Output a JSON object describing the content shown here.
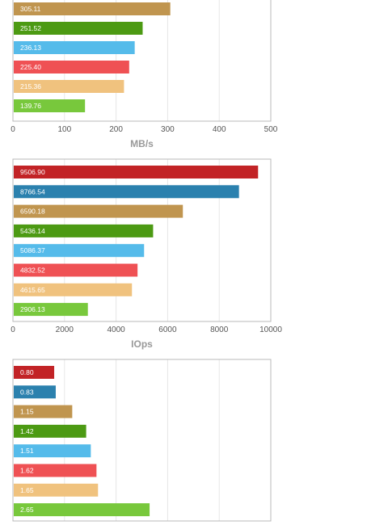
{
  "chart_data": [
    {
      "type": "bar",
      "orientation": "horizontal",
      "xlabel": "MB/s",
      "xlim": [
        0,
        500
      ],
      "xticks": [
        "0",
        "100",
        "200",
        "300",
        "400",
        "500"
      ],
      "bars": [
        {
          "value": 305.11,
          "label": "305.11",
          "color": "#c0954f"
        },
        {
          "value": 251.52,
          "label": "251.52",
          "color": "#4c9a13"
        },
        {
          "value": 236.13,
          "label": "236.13",
          "color": "#55bbea"
        },
        {
          "value": 225.4,
          "label": "225.40",
          "color": "#ef5154"
        },
        {
          "value": 215.36,
          "label": "215.36",
          "color": "#f0c27e"
        },
        {
          "value": 139.76,
          "label": "139.76",
          "color": "#78c83c"
        }
      ]
    },
    {
      "type": "bar",
      "orientation": "horizontal",
      "xlabel": "IOps",
      "xlim": [
        0,
        10000
      ],
      "xticks": [
        "0",
        "2000",
        "4000",
        "6000",
        "8000",
        "10000"
      ],
      "bars": [
        {
          "value": 9506.9,
          "label": "9506.90",
          "color": "#c22326"
        },
        {
          "value": 8766.54,
          "label": "8766.54",
          "color": "#2b81ae"
        },
        {
          "value": 6590.18,
          "label": "6590.18",
          "color": "#c0954f"
        },
        {
          "value": 5436.14,
          "label": "5436.14",
          "color": "#4c9a13"
        },
        {
          "value": 5086.37,
          "label": "5086.37",
          "color": "#55bbea"
        },
        {
          "value": 4832.52,
          "label": "4832.52",
          "color": "#ef5154"
        },
        {
          "value": 4615.65,
          "label": "4615.65",
          "color": "#f0c27e"
        },
        {
          "value": 2906.13,
          "label": "2906.13",
          "color": "#78c83c"
        }
      ]
    },
    {
      "type": "bar",
      "orientation": "horizontal",
      "xlabel": "",
      "xlim": [
        0,
        5
      ],
      "xticks": [],
      "bars": [
        {
          "value": 0.8,
          "label": "0.80",
          "color": "#c22326"
        },
        {
          "value": 0.83,
          "label": "0.83",
          "color": "#2b81ae"
        },
        {
          "value": 1.15,
          "label": "1.15",
          "color": "#c0954f"
        },
        {
          "value": 1.42,
          "label": "1.42",
          "color": "#4c9a13"
        },
        {
          "value": 1.51,
          "label": "1.51",
          "color": "#55bbea"
        },
        {
          "value": 1.62,
          "label": "1.62",
          "color": "#ef5154"
        },
        {
          "value": 1.65,
          "label": "1.65",
          "color": "#f0c27e"
        },
        {
          "value": 2.65,
          "label": "2.65",
          "color": "#78c83c"
        }
      ]
    }
  ]
}
